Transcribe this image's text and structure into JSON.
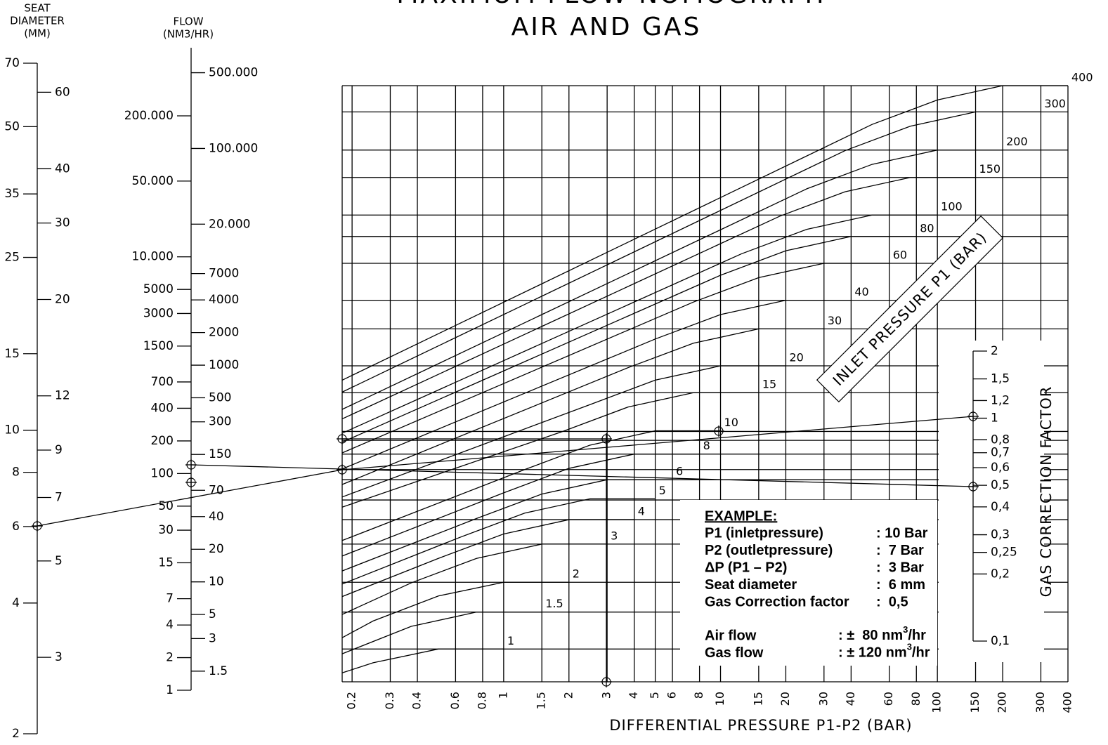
{
  "chart_data": [
    {
      "type": "scale",
      "title": [
        "SEAT",
        "DIAMETER",
        "(MM)"
      ],
      "log": true,
      "ylim": [
        2,
        70
      ],
      "yticks": [
        70,
        50,
        35,
        25,
        15,
        10,
        8,
        6,
        4,
        2
      ],
      "yticks_right": [
        60,
        40,
        30,
        20,
        12,
        9,
        7,
        5,
        3
      ]
    },
    {
      "type": "scale",
      "title": [
        "FLOW",
        "(NM3/HR)"
      ],
      "log": true,
      "ylim": [
        1,
        850000
      ],
      "yticks": [
        {
          "value": 200000,
          "label": "200.000"
        },
        {
          "value": 50000,
          "label": "50.000"
        },
        {
          "value": 10000,
          "label": "10.000"
        },
        5000,
        3000,
        1500,
        700,
        400,
        200,
        100,
        50,
        30,
        15,
        7,
        4,
        2,
        1
      ],
      "yticks_right": [
        {
          "value": 500000,
          "label": "500.000"
        },
        {
          "value": 100000,
          "label": "100.000"
        },
        {
          "value": 20000,
          "label": "20.000"
        },
        7000,
        4000,
        2000,
        1000,
        500,
        300,
        150,
        70,
        40,
        20,
        10,
        5,
        3,
        1.5
      ]
    },
    {
      "type": "line",
      "title": "MAXIMUM FLOW NOMOGRAPH",
      "subtitle": "AIR AND GAS",
      "xlabel": "DIFFERENTIAL PRESSURE P1-P2 (BAR)",
      "series_title": "INLET PRESSURE P1 (BAR)",
      "log_x": true,
      "xlim": [
        0.18,
        400
      ],
      "ylim": [
        0,
        100
      ],
      "color": "#000000",
      "xticks": [
        0.2,
        0.3,
        0.4,
        0.6,
        0.8,
        1,
        1.5,
        2,
        3,
        4,
        5,
        6,
        8,
        10,
        15,
        20,
        30,
        40,
        60,
        80,
        100,
        150,
        200,
        300,
        400
      ],
      "grid_y": [
        100,
        95.6,
        89.2,
        84.6,
        78.3,
        74.7,
        70.2,
        64.0,
        59.2,
        53.0,
        48.5,
        42.0,
        40.5,
        38.2,
        35.6,
        33.9,
        30.5,
        27.2,
        23.1,
        16.7,
        11.7,
        5.5
      ],
      "series": [
        {
          "name": "1",
          "x": [
            0.18,
            0.25,
            0.5,
            1
          ],
          "values": [
            1.5,
            3.2,
            5.5,
            5.5
          ]
        },
        {
          "name": "1.5",
          "x": [
            0.18,
            0.375,
            0.75,
            1.5
          ],
          "values": [
            4.7,
            9.3,
            11.7,
            11.7
          ]
        },
        {
          "name": "2",
          "x": [
            0.18,
            0.25,
            0.5,
            1,
            2
          ],
          "values": [
            7.4,
            10.2,
            14.4,
            16.7,
            16.7
          ]
        },
        {
          "name": "3",
          "x": [
            0.18,
            0.375,
            0.75,
            1.5,
            3
          ],
          "values": [
            11.3,
            16.6,
            20.7,
            23.1,
            23.1
          ]
        },
        {
          "name": "4",
          "x": [
            0.18,
            0.5,
            1,
            2,
            4
          ],
          "values": [
            14.3,
            20.7,
            24.8,
            27.2,
            27.2
          ]
        },
        {
          "name": "5",
          "x": [
            0.18,
            0.625,
            1.25,
            2.5,
            5
          ],
          "values": [
            16.4,
            24.2,
            28.3,
            30.7,
            30.7
          ]
        },
        {
          "name": "6",
          "x": [
            0.18,
            0.75,
            1.5,
            3,
            6
          ],
          "values": [
            18.6,
            27.4,
            31.5,
            33.9,
            33.9
          ]
        },
        {
          "name": "8",
          "x": [
            0.18,
            1,
            2,
            4,
            8
          ],
          "values": [
            21.1,
            31.7,
            35.8,
            38.2,
            38.2
          ]
        },
        {
          "name": "10",
          "x": [
            0.18,
            1.25,
            2.5,
            5,
            10
          ],
          "values": [
            23.7,
            35.6,
            39.7,
            42.1,
            42.1
          ]
        },
        {
          "name": "15",
          "x": [
            0.18,
            1.875,
            3.75,
            7.5,
            15
          ],
          "values": [
            29.3,
            42.0,
            46.1,
            48.5,
            48.5
          ]
        },
        {
          "name": "20",
          "x": [
            0.18,
            2.5,
            5,
            10,
            20
          ],
          "values": [
            31.0,
            46.5,
            50.6,
            53.0,
            53.0
          ]
        },
        {
          "name": "30",
          "x": [
            0.18,
            3.75,
            7.5,
            15,
            30
          ],
          "values": [
            33.1,
            52.7,
            56.8,
            59.2,
            59.2
          ]
        },
        {
          "name": "40",
          "x": [
            0.18,
            5,
            10,
            20,
            40
          ],
          "values": [
            35.7,
            57.5,
            61.6,
            64.0,
            64.0
          ]
        },
        {
          "name": "60",
          "x": [
            0.18,
            7.5,
            15,
            30,
            60
          ],
          "values": [
            38.4,
            63.7,
            67.8,
            70.2,
            70.2
          ]
        },
        {
          "name": "80",
          "x": [
            0.18,
            10,
            20,
            40,
            80
          ],
          "values": [
            40.2,
            68.2,
            72.3,
            74.7,
            74.7
          ]
        },
        {
          "name": "100",
          "x": [
            0.18,
            12.5,
            25,
            50,
            100
          ],
          "values": [
            41.7,
            71.8,
            75.9,
            78.3,
            78.3
          ]
        },
        {
          "name": "150",
          "x": [
            0.18,
            18.75,
            37.5,
            75,
            150
          ],
          "values": [
            44.1,
            78.1,
            82.2,
            84.6,
            84.6
          ]
        },
        {
          "name": "200",
          "x": [
            0.18,
            25,
            50,
            100,
            200
          ],
          "values": [
            45.7,
            82.7,
            86.8,
            89.2,
            89.2
          ]
        },
        {
          "name": "300",
          "x": [
            0.18,
            37.5,
            75,
            150,
            300
          ],
          "values": [
            48.6,
            89.1,
            93.2,
            95.6,
            95.6
          ]
        },
        {
          "name": "400",
          "x": [
            0.18,
            50,
            100,
            200,
            400
          ],
          "values": [
            50.6,
            93.5,
            97.6,
            100,
            100
          ]
        }
      ]
    },
    {
      "type": "scale",
      "title": "GAS CORRECTION FACTOR",
      "log": true,
      "ylim": [
        0.1,
        2
      ],
      "yticks_right": [
        2,
        {
          "value": 1.5,
          "label": "1,5"
        },
        {
          "value": 1.2,
          "label": "1,2"
        },
        1,
        {
          "value": 0.8,
          "label": "0,8"
        },
        {
          "value": 0.7,
          "label": "0,7"
        },
        {
          "value": 0.6,
          "label": "0,6"
        },
        {
          "value": 0.5,
          "label": "0,5"
        },
        {
          "value": 0.4,
          "label": "0,4"
        },
        {
          "value": 0.3,
          "label": "0,3"
        },
        {
          "value": 0.25,
          "label": "0,25"
        },
        {
          "value": 0.2,
          "label": "0,2"
        },
        {
          "value": 0.1,
          "label": "0,1"
        }
      ]
    }
  ],
  "example": {
    "heading": "EXAMPLE:",
    "rows": [
      [
        "P1 (inletpressure)",
        ": 10 Bar"
      ],
      [
        "P2 (outletpressure)",
        ":  7 Bar"
      ],
      [
        "ΔP (P1 – P2)",
        ":  3 Bar"
      ],
      [
        "Seat diameter",
        ":  6 mm"
      ],
      [
        "Gas Correction factor",
        ":  0,5"
      ]
    ],
    "results": [
      {
        "label": "Air flow",
        "value": ": ±  80 nm",
        "sup": "3",
        "unit": "/hr"
      },
      {
        "label": "Gas flow",
        "value": ": ± 120 nm",
        "sup": "3",
        "unit": "/hr"
      }
    ]
  }
}
